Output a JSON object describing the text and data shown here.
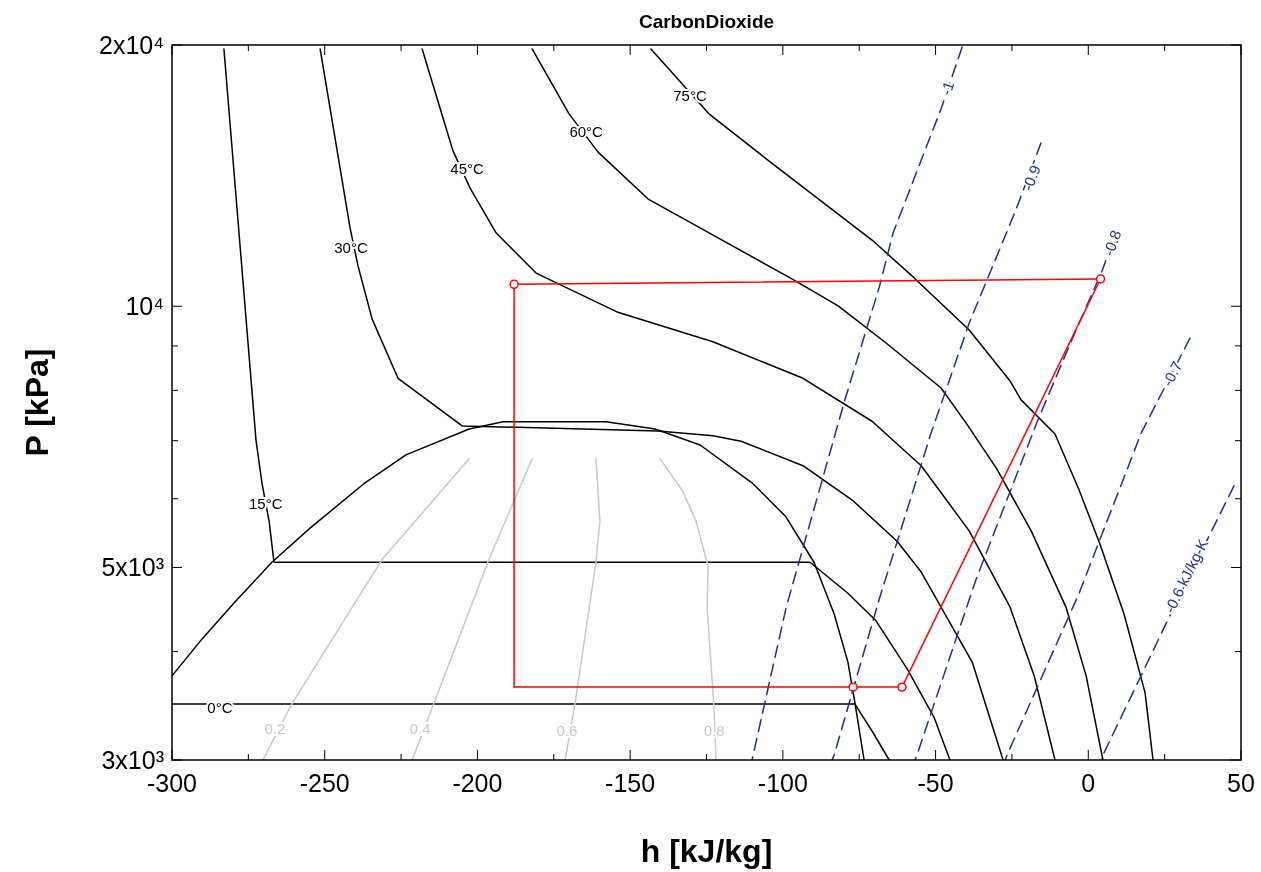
{
  "chart_data": {
    "type": "line",
    "title": "CarbonDioxide",
    "xlabel": "h [kJ/kg]",
    "ylabel": "P [kPa]",
    "log": "y",
    "grid": false,
    "xlim": [
      -300,
      50
    ],
    "xticks": [
      -300,
      {
        "value": -275,
        "label": null
      },
      -250,
      {
        "value": -225,
        "label": null
      },
      -200,
      {
        "value": -175,
        "label": null
      },
      -150,
      {
        "value": -125,
        "label": null
      },
      -100,
      {
        "value": -75,
        "label": null
      },
      -50,
      {
        "value": -25,
        "label": null
      },
      0,
      {
        "value": 25,
        "label": null
      },
      50
    ],
    "ylim": [
      3000,
      20000
    ],
    "yticks": [
      {
        "value": 3000,
        "label": "3x10³"
      },
      {
        "value": 4000,
        "label": null
      },
      {
        "value": 5000,
        "label": "5x10³"
      },
      {
        "value": 6000,
        "label": null
      },
      {
        "value": 7000,
        "label": null
      },
      {
        "value": 8000,
        "label": null
      },
      {
        "value": 9000,
        "label": null
      },
      {
        "value": 10000,
        "label": "10⁴"
      },
      {
        "value": 20000,
        "label": "2x10⁴"
      }
    ],
    "series": [
      {
        "type": "line",
        "color": "#000000",
        "x": [
          -300,
          -290.8,
          -279.7,
          -267.3,
          -254.8,
          -236.8,
          -223.4,
          -202.7,
          -191.6,
          -157.9,
          -141.8,
          -127.1,
          -110.1,
          -99,
          -89.8,
          -83.2,
          -78.7,
          -76.4,
          -73.4
        ],
        "values": [
          3750,
          4110,
          4550,
          5070,
          5550,
          6260,
          6740,
          7220,
          7360,
          7360,
          7220,
          6920,
          6260,
          5720,
          5070,
          4420,
          3890,
          3490,
          3000
        ]
      },
      {
        "type": "line",
        "color": "#000000",
        "x": [
          -300,
          -76.4,
          -70.8,
          -65.2
        ],
        "values": [
          3480,
          3480,
          3240,
          3000
        ]
      },
      {
        "type": "line",
        "color": "#000000",
        "x": [
          -283,
          -272.5,
          -270.5,
          -268.2,
          -266.6,
          -91.1,
          -78.7,
          -69.5,
          -59.3,
          -50.5,
          -45.3
        ],
        "values": [
          19790,
          7010,
          6240,
          5650,
          5070,
          5070,
          4670,
          4340,
          3820,
          3360,
          3000
        ]
      },
      {
        "type": "line",
        "color": "#000000",
        "x": [
          -251.5,
          -241.7,
          -239.1,
          -234.5,
          -226,
          -205,
          -140.9,
          -122.9,
          -113.7,
          -93.4,
          -77.3,
          -62.6,
          -54.7,
          -38,
          -27.9
        ],
        "values": [
          19790,
          12310,
          11130,
          9670,
          8260,
          7280,
          7180,
          7090,
          6990,
          6550,
          5980,
          5360,
          4940,
          3890,
          3000
        ]
      },
      {
        "type": "line",
        "color": "#000000",
        "x": [
          -218.1,
          -208,
          -202.4,
          -193.9,
          -180.8,
          -154.3,
          -122.9,
          -93.4,
          -70.8,
          -54.7,
          -39,
          -25.6,
          -17.7,
          -10.9
        ],
        "values": [
          19790,
          15100,
          13680,
          12150,
          10920,
          9850,
          9100,
          8260,
          7370,
          6550,
          5510,
          4500,
          3750,
          3000
        ]
      },
      {
        "type": "line",
        "color": "#000000",
        "x": [
          -182.1,
          -170,
          -160.5,
          -144.1,
          -127.1,
          -97.6,
          -81.9,
          -66.2,
          -48.2,
          -39.7,
          -29.9,
          -18.7,
          -7.3,
          -0.7,
          4.8
        ],
        "values": [
          19790,
          16660,
          15050,
          13290,
          12310,
          10780,
          10010,
          9070,
          8050,
          7310,
          6490,
          5510,
          4500,
          3750,
          3000
        ]
      },
      {
        "type": "line",
        "color": "#000000",
        "x": [
          -143.2,
          -124.2,
          -104.5,
          -70.8,
          -57,
          -39,
          -25.6,
          -22,
          -10.9,
          -3,
          3.9,
          11.7,
          18.6,
          21.2
        ],
        "values": [
          19790,
          16660,
          14700,
          11920,
          10780,
          9390,
          8200,
          7800,
          7125,
          6140,
          5310,
          4420,
          3585,
          3000
        ]
      },
      {
        "type": "line",
        "color": "#c8c8c8",
        "x": [
          -202.7,
          -231.2,
          -261,
          -270.2
        ],
        "values": [
          6670,
          5110,
          3470,
          3000
        ]
      },
      {
        "type": "line",
        "color": "#c8c8c8",
        "x": [
          -182.1,
          -196.2,
          -214.2,
          -221.4
        ],
        "values": [
          6670,
          5110,
          3490,
          3000
        ]
      },
      {
        "type": "line",
        "color": "#c8c8c8",
        "x": [
          -161.2,
          -159.9,
          -161.2,
          -168,
          -171.3
        ],
        "values": [
          6670,
          5650,
          5070,
          3490,
          3000
        ]
      },
      {
        "type": "line",
        "color": "#c8c8c8",
        "x": [
          -140.2,
          -133,
          -128.4,
          -124.5,
          -124.8,
          -122.5,
          -121.9
        ],
        "values": [
          6670,
          6140,
          5650,
          5020,
          4500,
          3430,
          3000
        ]
      },
      {
        "type": "line",
        "color": "#1f2f9a",
        "line_style": "dashed",
        "x": [
          -41.3,
          -48.2,
          -63.9,
          -68.5,
          -79.6,
          -98.9,
          -110.1
        ],
        "values": [
          19890,
          16880,
          12150,
          10500,
          7820,
          4500,
          3000
        ]
      },
      {
        "type": "line",
        "color": "#1f2f9a",
        "line_style": "dashed",
        "x": [
          -15.5,
          -23.6,
          -39,
          -51.5,
          -68.5,
          -83.2,
          -83.9
        ],
        "values": [
          15420,
          12940,
          9560,
          7140,
          4590,
          3040,
          3000
        ]
      },
      {
        "type": "line",
        "color": "#1f2f9a",
        "line_style": "dashed",
        "x": [
          7.8,
          4.5,
          -4,
          -16.4,
          -36.7,
          -56.1,
          -56.7
        ],
        "values": [
          11830,
          10980,
          9390,
          7410,
          4850,
          3040,
          3000
        ]
      },
      {
        "type": "line",
        "color": "#1f2f9a",
        "line_style": "dashed",
        "x": [
          33.3,
          17.3,
          -3,
          -26.6,
          -27.2
        ],
        "values": [
          9190,
          7140,
          4670,
          3040,
          3000
        ]
      },
      {
        "type": "line",
        "color": "#1f2f9a",
        "line_style": "dashed",
        "x": [
          47.7,
          28.7,
          4.8,
          4.2
        ],
        "values": [
          6210,
          4550,
          3040,
          3000
        ]
      },
      {
        "color": "#ff0000",
        "x": [
          -188,
          4
        ],
        "values": [
          10600,
          10750
        ]
      },
      {
        "color": "#ff0000",
        "x": [
          4,
          -61
        ],
        "values": [
          10750,
          3640
        ]
      },
      {
        "color": "#ff0000",
        "x": [
          -188,
          -77,
          -61
        ],
        "values": [
          3640,
          3640,
          3640
        ]
      },
      {
        "color": "#ff0000",
        "x": [
          -188,
          -188
        ],
        "values": [
          3640,
          10600
        ]
      },
      {
        "type": "scatter",
        "color": "#ff0000",
        "marker": "circle",
        "x": [
          -188,
          4,
          -61,
          -77
        ],
        "values": [
          10600,
          10750,
          3640,
          3640
        ]
      }
    ],
    "annotations": [
      {
        "text": "0°C",
        "x": -284.3,
        "y": 3450
      },
      {
        "text": "15°C",
        "x": -269.3,
        "y": 5930
      },
      {
        "text": "30°C",
        "x": -241.4,
        "y": 11700
      },
      {
        "text": "45°C",
        "x": -203.4,
        "y": 14430
      },
      {
        "text": "60°C",
        "x": -164.4,
        "y": 15880
      },
      {
        "text": "75°C",
        "x": -130.4,
        "y": 17470
      },
      {
        "text": "0.2",
        "x": -266.3,
        "y": 3260
      },
      {
        "text": "0.4",
        "x": -218.8,
        "y": 3260
      },
      {
        "text": "0.6",
        "x": -170.7,
        "y": 3240
      },
      {
        "text": "0.8",
        "x": -122.5,
        "y": 3240
      },
      {
        "text": "-1",
        "x": -46.2,
        "y": 17840
      },
      {
        "text": "-0.9",
        "x": -18.7,
        "y": 14060
      },
      {
        "text": "-0.8",
        "x": 7.8,
        "y": 11830
      },
      {
        "text": "-0.7",
        "x": 27.4,
        "y": 8360
      },
      {
        "text": "-0.6 kJ/kg-K",
        "x": 32,
        "y": 4890
      }
    ]
  }
}
